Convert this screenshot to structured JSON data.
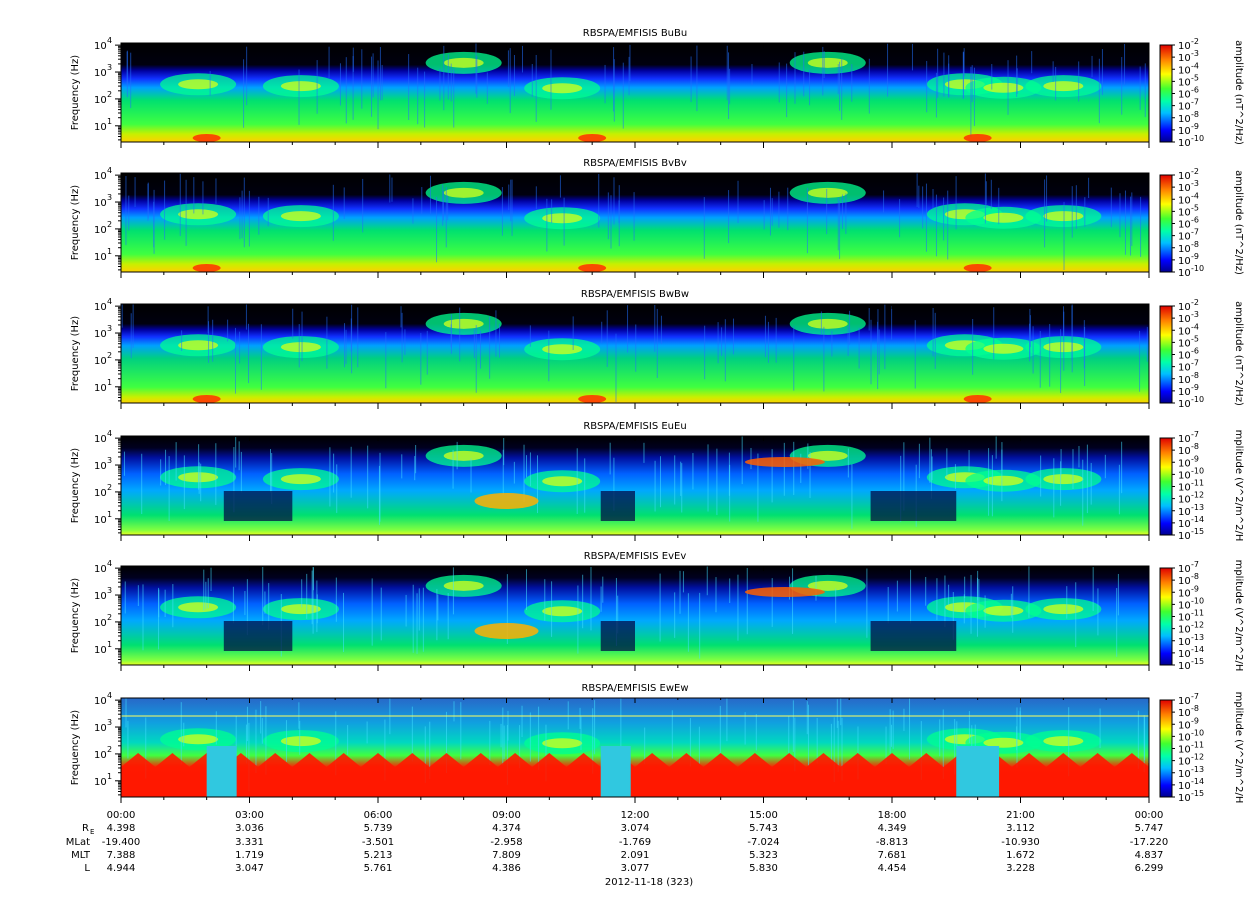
{
  "chart_data": [
    {
      "type": "heatmap",
      "title": "RBSPA/EMFISIS  BuBu",
      "ylabel": "Frequency (Hz)",
      "ylim": [
        2.5,
        12000
      ],
      "yscale": "log",
      "yticks": [
        {
          "exp": "1",
          "value": 10
        },
        {
          "exp": "2",
          "value": 100
        },
        {
          "exp": "3",
          "value": 1000
        },
        {
          "exp": "4",
          "value": 10000
        }
      ],
      "colorbar": {
        "label": "amplitude (nT^2/Hz)",
        "range": [
          1e-10,
          0.01
        ],
        "ticks": [
          "-2",
          "-3",
          "-4",
          "-5",
          "-6",
          "-7",
          "-8",
          "-9",
          "-10"
        ]
      },
      "background": "#000000",
      "palette": "magnetic"
    },
    {
      "type": "heatmap",
      "title": "RBSPA/EMFISIS  BvBv",
      "ylabel": "Frequency (Hz)",
      "ylim": [
        2.5,
        12000
      ],
      "yscale": "log",
      "yticks": [
        {
          "exp": "1",
          "value": 10
        },
        {
          "exp": "2",
          "value": 100
        },
        {
          "exp": "3",
          "value": 1000
        },
        {
          "exp": "4",
          "value": 10000
        }
      ],
      "colorbar": {
        "label": "amplitude (nT^2/Hz)",
        "range": [
          1e-10,
          0.01
        ],
        "ticks": [
          "-2",
          "-3",
          "-4",
          "-5",
          "-6",
          "-7",
          "-8",
          "-9",
          "-10"
        ]
      },
      "background": "#000000",
      "palette": "magnetic"
    },
    {
      "type": "heatmap",
      "title": "RBSPA/EMFISIS  BwBw",
      "ylabel": "Frequency (Hz)",
      "ylim": [
        2.5,
        12000
      ],
      "yscale": "log",
      "yticks": [
        {
          "exp": "1",
          "value": 10
        },
        {
          "exp": "2",
          "value": 100
        },
        {
          "exp": "3",
          "value": 1000
        },
        {
          "exp": "4",
          "value": 10000
        }
      ],
      "colorbar": {
        "label": "amplitude (nT^2/Hz)",
        "range": [
          1e-10,
          0.01
        ],
        "ticks": [
          "-2",
          "-3",
          "-4",
          "-5",
          "-6",
          "-7",
          "-8",
          "-9",
          "-10"
        ]
      },
      "background": "#000000",
      "palette": "magnetic"
    },
    {
      "type": "heatmap",
      "title": "RBSPA/EMFISIS  EuEu",
      "ylabel": "Frequency (Hz)",
      "ylim": [
        2.5,
        12000
      ],
      "yscale": "log",
      "yticks": [
        {
          "exp": "1",
          "value": 10
        },
        {
          "exp": "2",
          "value": 100
        },
        {
          "exp": "3",
          "value": 1000
        },
        {
          "exp": "4",
          "value": 10000
        }
      ],
      "colorbar": {
        "label": "mplitude (V^2/m^2/H",
        "range": [
          1e-15,
          1e-07
        ],
        "ticks": [
          "-7",
          "-8",
          "-9",
          "-10",
          "-11",
          "-12",
          "-13",
          "-14",
          "-15"
        ]
      },
      "background": "#000000",
      "palette": "electric"
    },
    {
      "type": "heatmap",
      "title": "RBSPA/EMFISIS  EvEv",
      "ylabel": "Frequency (Hz)",
      "ylim": [
        2.5,
        12000
      ],
      "yscale": "log",
      "yticks": [
        {
          "exp": "1",
          "value": 10
        },
        {
          "exp": "2",
          "value": 100
        },
        {
          "exp": "3",
          "value": 1000
        },
        {
          "exp": "4",
          "value": 10000
        }
      ],
      "colorbar": {
        "label": "mplitude (V^2/m^2/H",
        "range": [
          1e-15,
          1e-07
        ],
        "ticks": [
          "-7",
          "-8",
          "-9",
          "-10",
          "-11",
          "-12",
          "-13",
          "-14",
          "-15"
        ]
      },
      "background": "#000000",
      "palette": "electric"
    },
    {
      "type": "heatmap",
      "title": "RBSPA/EMFISIS  EwEw",
      "ylabel": "Frequency (Hz)",
      "ylim": [
        2.5,
        12000
      ],
      "yscale": "log",
      "yticks": [
        {
          "exp": "1",
          "value": 10
        },
        {
          "exp": "2",
          "value": 100
        },
        {
          "exp": "3",
          "value": 1000
        },
        {
          "exp": "4",
          "value": 10000
        }
      ],
      "colorbar": {
        "label": "mplitude (V^2/m^2/H",
        "range": [
          1e-15,
          1e-07
        ],
        "ticks": [
          "-7",
          "-8",
          "-9",
          "-10",
          "-11",
          "-12",
          "-13",
          "-14",
          "-15"
        ]
      },
      "background": "#2a55c8",
      "palette": "ew"
    }
  ],
  "colorbar_base": "10",
  "time_axis": {
    "range_hours": [
      0,
      24
    ],
    "ticks": [
      {
        "h": 0,
        "label": "00:00",
        "re": "4.398",
        "mlat": "-19.400",
        "mlt": "7.388",
        "l": "4.944"
      },
      {
        "h": 3,
        "label": "03:00",
        "re": "3.036",
        "mlat": "3.331",
        "mlt": "1.719",
        "l": "3.047"
      },
      {
        "h": 6,
        "label": "06:00",
        "re": "5.739",
        "mlat": "-3.501",
        "mlt": "5.213",
        "l": "5.761"
      },
      {
        "h": 9,
        "label": "09:00",
        "re": "4.374",
        "mlat": "-2.958",
        "mlt": "7.809",
        "l": "4.386"
      },
      {
        "h": 12,
        "label": "12:00",
        "re": "3.074",
        "mlat": "-1.769",
        "mlt": "2.091",
        "l": "3.077"
      },
      {
        "h": 15,
        "label": "15:00",
        "re": "5.743",
        "mlat": "-7.024",
        "mlt": "5.323",
        "l": "5.830"
      },
      {
        "h": 18,
        "label": "18:00",
        "re": "4.349",
        "mlat": "-8.813",
        "mlt": "7.681",
        "l": "4.454"
      },
      {
        "h": 21,
        "label": "21:00",
        "re": "3.112",
        "mlat": "-10.930",
        "mlt": "1.672",
        "l": "3.228"
      },
      {
        "h": 24,
        "label": "00:00",
        "re": "5.747",
        "mlat": "-17.220",
        "mlt": "4.837",
        "l": "6.299"
      }
    ],
    "row_labels": {
      "re": "R",
      "re_sub": "E",
      "mlat": "MLat",
      "mlt": "MLT",
      "l": "L"
    },
    "date_label": "2012-11-18 (323)"
  }
}
